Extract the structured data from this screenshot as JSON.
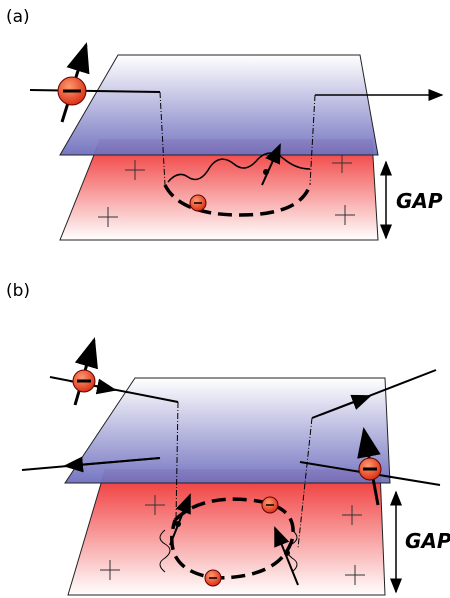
{
  "panels": [
    {
      "label": "(a)",
      "gap_label": "GAP"
    },
    {
      "label": "(b)",
      "gap_label": "GAP"
    }
  ]
}
